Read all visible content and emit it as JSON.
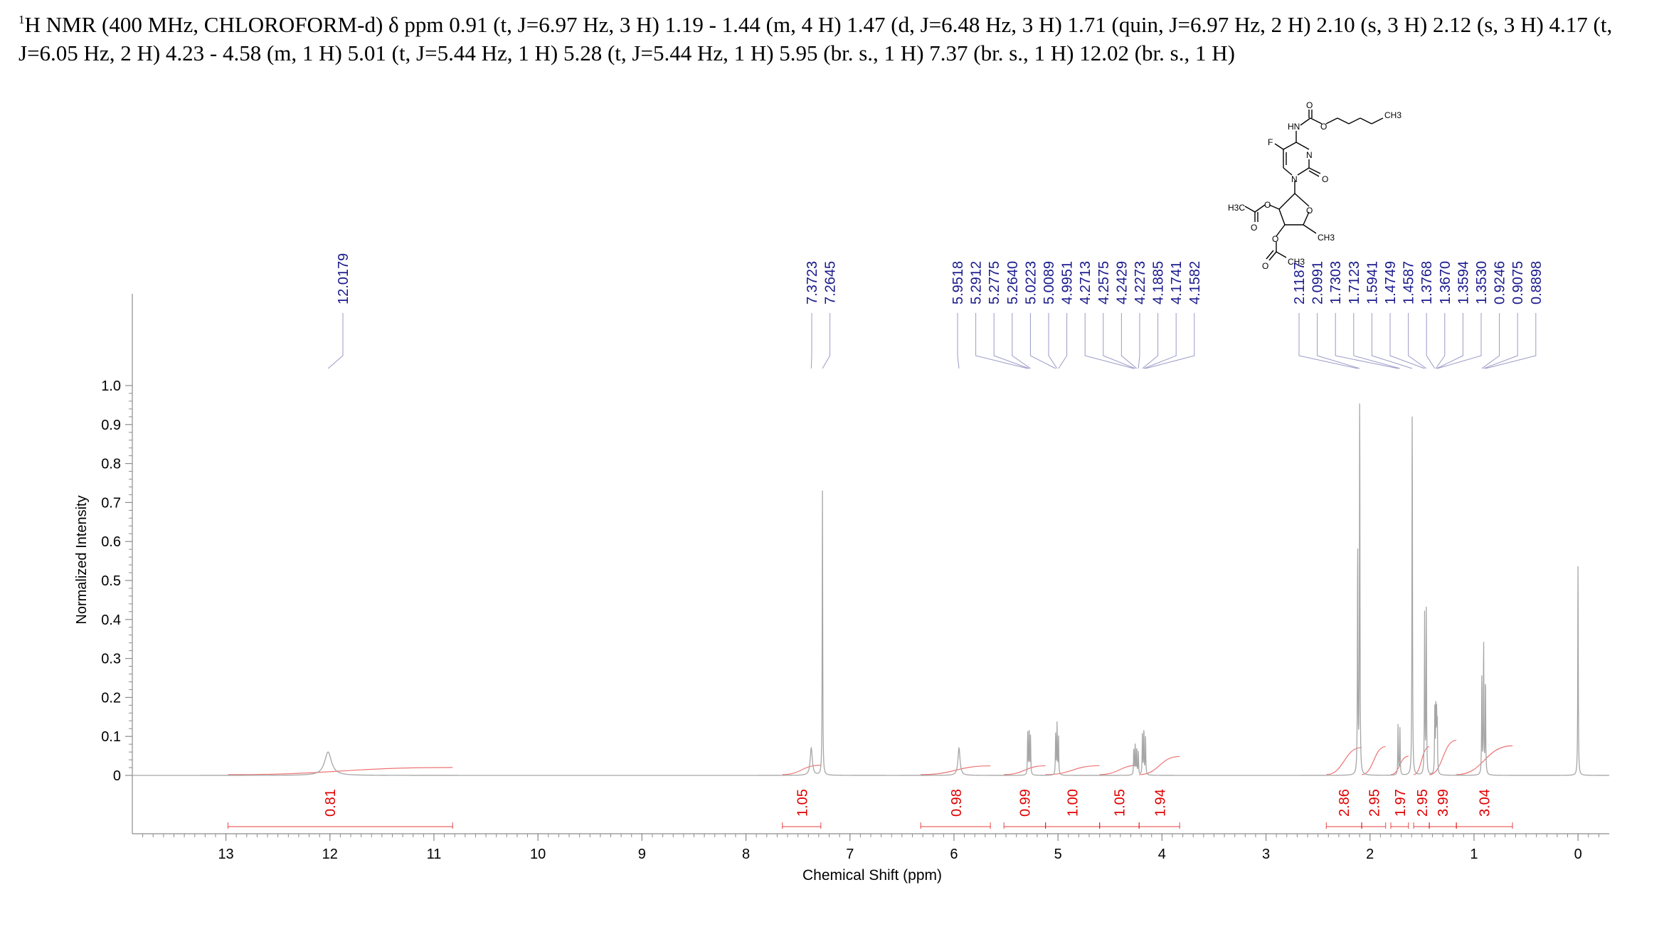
{
  "header": {
    "nucleus_sup": "1",
    "text": "H NMR (400 MHz, CHLOROFORM-d) δ ppm 0.91 (t, J=6.97 Hz, 3 H) 1.19 - 1.44 (m, 4 H) 1.47 (d, J=6.48 Hz, 3 H) 1.71 (quin, J=6.97 Hz, 2 H) 2.10 (s, 3 H) 2.12 (s, 3 H) 4.17 (t, J=6.05 Hz, 2 H) 4.23 - 4.58 (m, 1 H) 5.01 (t, J=5.44 Hz, 1 H) 5.28 (t, J=5.44 Hz, 1 H) 5.95 (br. s., 1 H) 7.37 (br. s., 1 H) 12.02 (br. s., 1 H)"
  },
  "molecule": {
    "atoms": [
      "O",
      "HN",
      "O",
      "CH3",
      "F",
      "N",
      "N",
      "O",
      "O",
      "O",
      "H3C",
      "O",
      "CH3",
      "O",
      "CH3",
      "O"
    ]
  },
  "chart_data": {
    "type": "line",
    "xlabel": "Chemical Shift (ppm)",
    "ylabel": "Normalized Intensity",
    "xlim": [
      13.9,
      -0.3
    ],
    "ylim": [
      0,
      1.0
    ],
    "x_ticks": [
      "13",
      "12",
      "11",
      "10",
      "9",
      "8",
      "7",
      "6",
      "5",
      "4",
      "3",
      "2",
      "1",
      "0"
    ],
    "y_ticks": [
      "0",
      "0.1",
      "0.2",
      "0.3",
      "0.4",
      "0.5",
      "0.6",
      "0.7",
      "0.8",
      "0.9",
      "1.0"
    ],
    "peaks": [
      {
        "ppm": 12.0179,
        "height": 0.06
      },
      {
        "ppm": 7.3723,
        "height": 0.07
      },
      {
        "ppm": 7.2645,
        "height": 0.73
      },
      {
        "ppm": 5.9518,
        "height": 0.07
      },
      {
        "ppm": 5.2912,
        "height": 0.11
      },
      {
        "ppm": 5.2775,
        "height": 0.12
      },
      {
        "ppm": 5.264,
        "height": 0.1
      },
      {
        "ppm": 5.0223,
        "height": 0.11
      },
      {
        "ppm": 5.0089,
        "height": 0.13
      },
      {
        "ppm": 4.9951,
        "height": 0.1
      },
      {
        "ppm": 4.2713,
        "height": 0.07
      },
      {
        "ppm": 4.2575,
        "height": 0.08
      },
      {
        "ppm": 4.2429,
        "height": 0.07
      },
      {
        "ppm": 4.2273,
        "height": 0.06
      },
      {
        "ppm": 4.1885,
        "height": 0.11
      },
      {
        "ppm": 4.1741,
        "height": 0.12
      },
      {
        "ppm": 4.1582,
        "height": 0.1
      },
      {
        "ppm": 2.1187,
        "height": 0.59
      },
      {
        "ppm": 2.0991,
        "height": 1.0
      },
      {
        "ppm": 1.7303,
        "height": 0.13
      },
      {
        "ppm": 1.7123,
        "height": 0.12
      },
      {
        "ppm": 1.5941,
        "height": 0.96
      },
      {
        "ppm": 1.4749,
        "height": 0.41
      },
      {
        "ppm": 1.4587,
        "height": 0.42
      },
      {
        "ppm": 1.3768,
        "height": 0.18
      },
      {
        "ppm": 1.367,
        "height": 0.16
      },
      {
        "ppm": 1.3594,
        "height": 0.14
      },
      {
        "ppm": 1.353,
        "height": 0.12
      },
      {
        "ppm": 0.9246,
        "height": 0.26
      },
      {
        "ppm": 0.9075,
        "height": 0.34
      },
      {
        "ppm": 0.8898,
        "height": 0.25
      },
      {
        "ppm": 0.0,
        "height": 0.54
      }
    ],
    "peak_labels": [
      "12.0179",
      "7.3723",
      "7.2645",
      "5.9518",
      "5.2912",
      "5.2775",
      "5.2640",
      "5.0223",
      "5.0089",
      "4.9951",
      "4.2713",
      "4.2575",
      "4.2429",
      "4.2273",
      "4.1885",
      "4.1741",
      "4.1582",
      "2.1187",
      "2.0991",
      "1.7303",
      "1.7123",
      "1.5941",
      "1.4749",
      "1.4587",
      "1.3768",
      "1.3670",
      "1.3594",
      "1.3530",
      "0.9246",
      "0.9075",
      "0.8898"
    ],
    "integrals": [
      {
        "from": 12.98,
        "to": 10.82,
        "value": "0.81",
        "center": 12.0
      },
      {
        "from": 7.65,
        "to": 7.28,
        "value": "1.05",
        "center": 7.46
      },
      {
        "from": 6.32,
        "to": 5.65,
        "value": "0.98",
        "center": 5.98
      },
      {
        "from": 5.52,
        "to": 5.12,
        "value": "0.99",
        "center": 5.32
      },
      {
        "from": 5.12,
        "to": 4.6,
        "value": "1.00",
        "center": 4.86
      },
      {
        "from": 4.6,
        "to": 4.22,
        "value": "1.05",
        "center": 4.41
      },
      {
        "from": 4.22,
        "to": 3.83,
        "value": "1.94",
        "center": 4.02
      },
      {
        "from": 2.42,
        "to": 2.08,
        "value": "2.86",
        "center": 2.25
      },
      {
        "from": 2.08,
        "to": 1.85,
        "value": "2.95",
        "center": 1.96
      },
      {
        "from": 1.8,
        "to": 1.63,
        "value": "1.97",
        "center": 1.71
      },
      {
        "from": 1.58,
        "to": 1.43,
        "value": "2.95",
        "center": 1.5
      },
      {
        "from": 1.43,
        "to": 1.17,
        "value": "3.99",
        "center": 1.3
      },
      {
        "from": 1.17,
        "to": 0.63,
        "value": "3.04",
        "center": 0.9
      }
    ],
    "spectrum_color": "#a6a6a6",
    "integral_color": "#e00000",
    "peak_label_color": "#1a1a8c"
  }
}
